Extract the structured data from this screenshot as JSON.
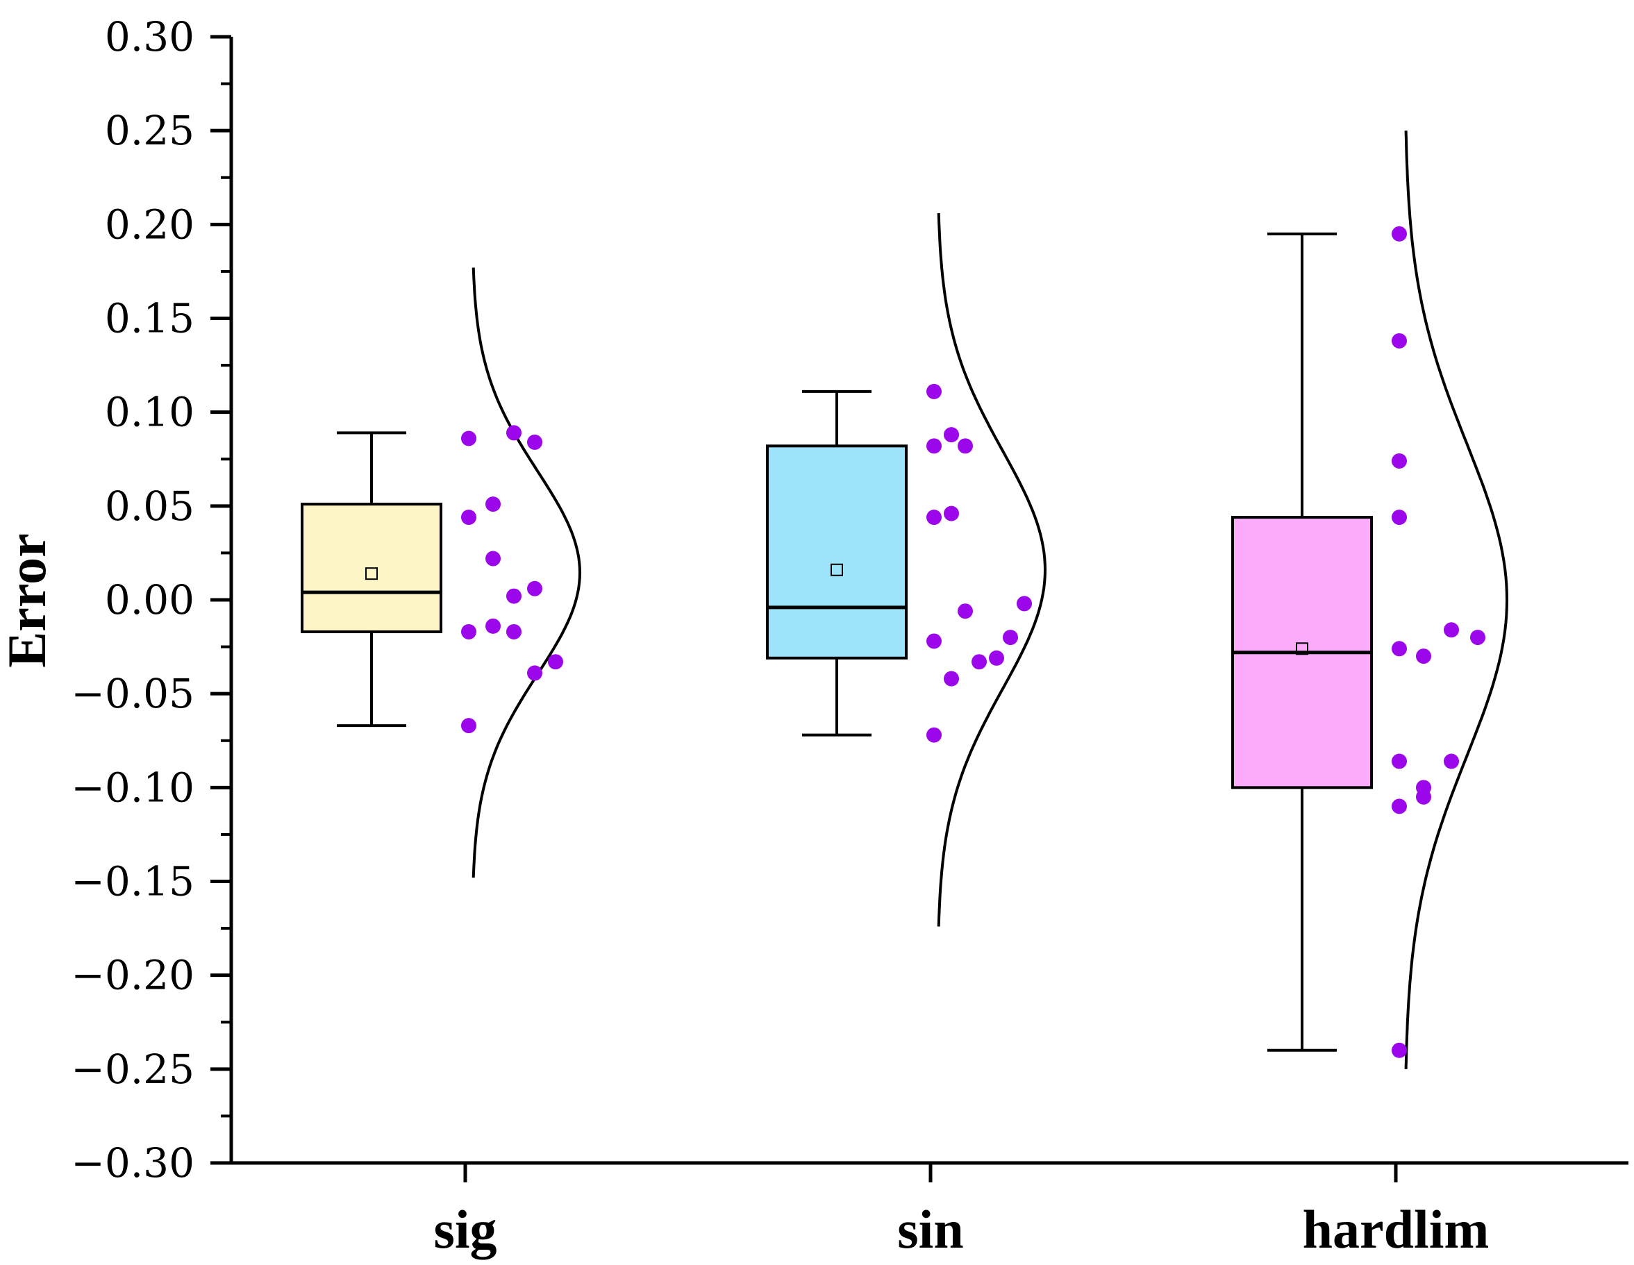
{
  "chart_data": {
    "type": "box",
    "title": "",
    "xlabel": "",
    "ylabel": "Error",
    "ylim": [
      -0.3,
      0.3
    ],
    "yticks": [
      0.3,
      0.25,
      0.2,
      0.15,
      0.1,
      0.05,
      0.0,
      -0.05,
      -0.1,
      -0.15,
      -0.2,
      -0.25,
      -0.3
    ],
    "ytick_labels": [
      "0.30",
      "0.25",
      "0.20",
      "0.15",
      "0.10",
      "0.05",
      "0.00",
      "−0.05",
      "−0.10",
      "−0.15",
      "−0.20",
      "−0.25",
      "−0.30"
    ],
    "categories": [
      "sig",
      "sin",
      "hardlim"
    ],
    "series": [
      {
        "name": "sig",
        "color": "#fdf5c6",
        "whisker_low": -0.067,
        "q1": -0.017,
        "median": 0.004,
        "q3": 0.051,
        "whisker_high": 0.089,
        "mean": 0.014,
        "points": [
          0.086,
          0.089,
          0.084,
          0.044,
          0.051,
          0.022,
          0.006,
          0.002,
          -0.014,
          -0.017,
          -0.017,
          -0.039,
          -0.033,
          -0.067
        ],
        "curve_range": [
          -0.148,
          0.177
        ]
      },
      {
        "name": "sin",
        "color": "#9de4fb",
        "whisker_low": -0.072,
        "q1": -0.031,
        "median": -0.004,
        "q3": 0.082,
        "whisker_high": 0.111,
        "mean": 0.016,
        "points": [
          0.111,
          0.082,
          0.088,
          0.082,
          0.044,
          0.046,
          -0.006,
          -0.002,
          -0.022,
          -0.02,
          -0.031,
          -0.033,
          -0.042,
          -0.072
        ],
        "curve_range": [
          -0.174,
          0.206
        ]
      },
      {
        "name": "hardlim",
        "color": "#fcabfb",
        "whisker_low": -0.24,
        "q1": -0.1,
        "median": -0.028,
        "q3": 0.044,
        "whisker_high": 0.195,
        "mean": -0.026,
        "points": [
          0.195,
          0.138,
          0.074,
          0.044,
          -0.026,
          -0.03,
          -0.016,
          -0.02,
          -0.086,
          -0.086,
          -0.1,
          -0.105,
          -0.11,
          -0.24
        ],
        "curve_range": [
          -0.25,
          0.25
        ]
      }
    ],
    "point_color": "#9b06ea",
    "grid": false,
    "legend": "none"
  }
}
